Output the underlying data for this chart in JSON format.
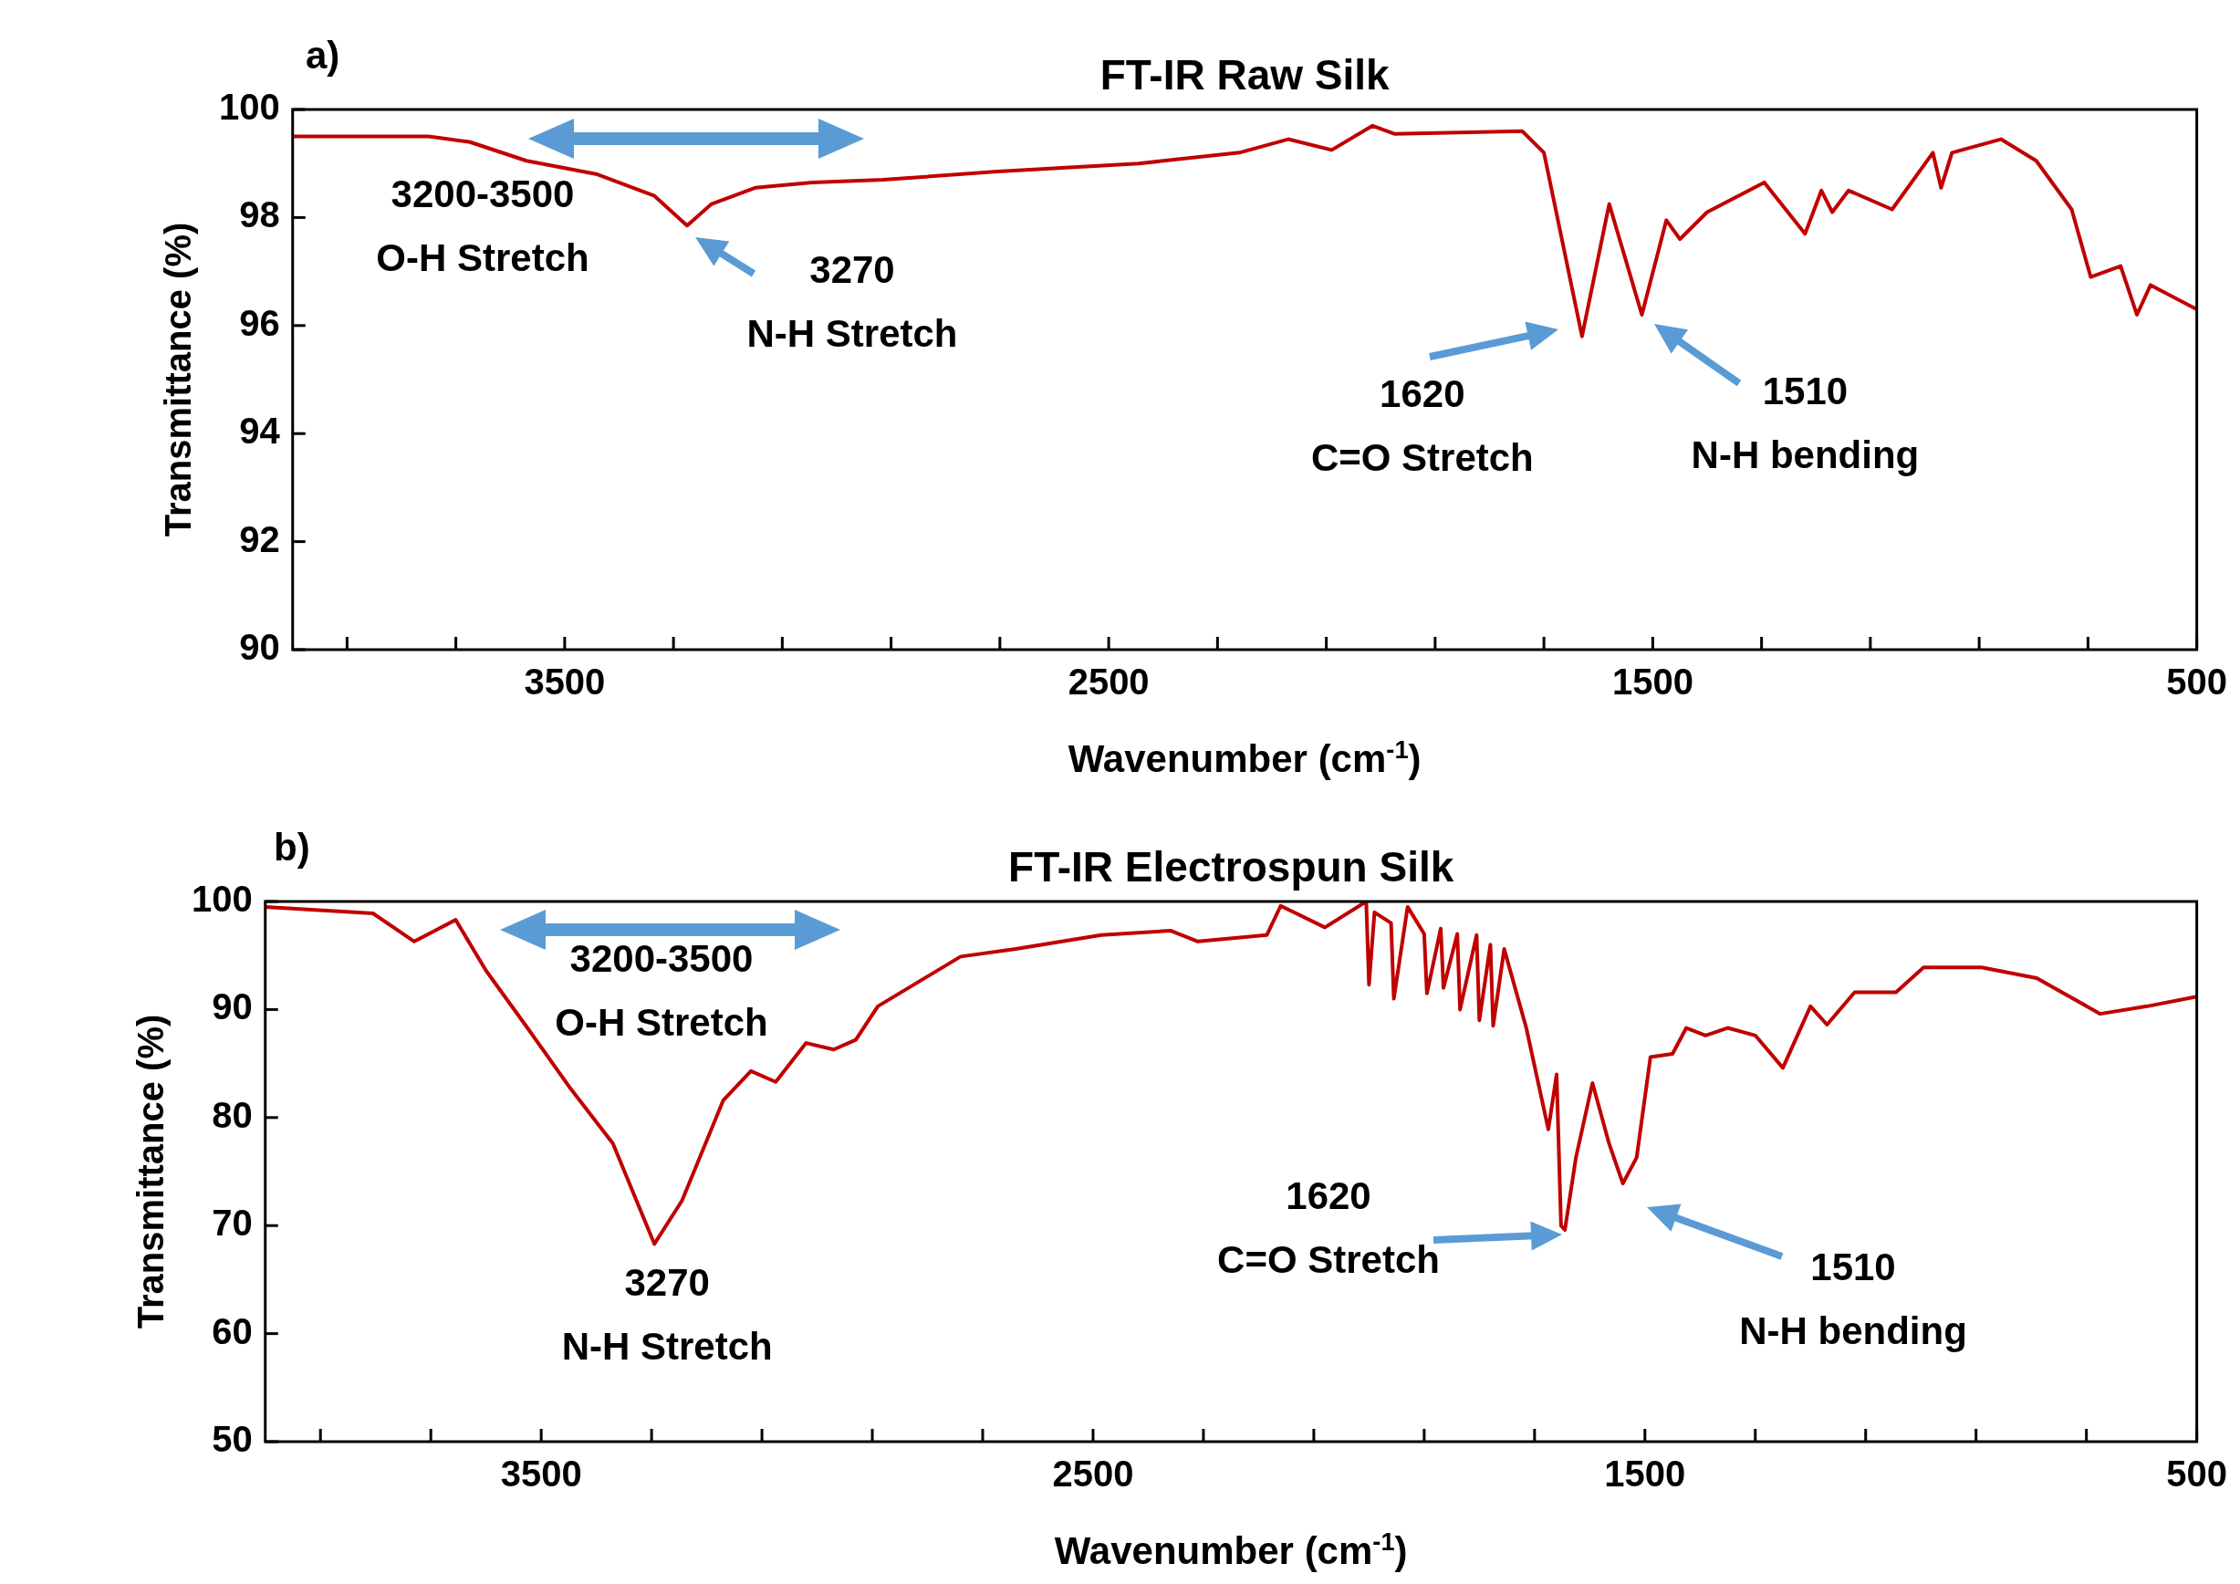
{
  "chart_data": [
    {
      "type": "line",
      "title": "FT-IR Raw Silk",
      "xlabel": "Wavenumber (cm$^{-1}$)",
      "ylabel": "Transmittance (%)",
      "marker": "none",
      "xlim": [
        4000,
        500
      ],
      "ylim": [
        90,
        100
      ],
      "xticks": [
        {
          "value": 3900,
          "label": null
        },
        {
          "value": 3700,
          "label": null
        },
        3500,
        {
          "value": 3300,
          "label": null
        },
        {
          "value": 3100,
          "label": null
        },
        {
          "value": 2900,
          "label": null
        },
        {
          "value": 2700,
          "label": null
        },
        2500,
        {
          "value": 2300,
          "label": null
        },
        {
          "value": 2100,
          "label": null
        },
        {
          "value": 1900,
          "label": null
        },
        {
          "value": 1700,
          "label": null
        },
        1500,
        {
          "value": 1300,
          "label": null
        },
        {
          "value": 1100,
          "label": null
        },
        {
          "value": 900,
          "label": null
        },
        {
          "value": 700,
          "label": null
        },
        500
      ],
      "yticks": [
        90,
        92,
        94,
        96,
        98,
        100
      ],
      "x": [
        4000,
        3750,
        3675,
        3570,
        3440,
        3335,
        3275,
        3230,
        3150,
        3045,
        2915,
        2705,
        2445,
        2260,
        2170,
        2090,
        2015,
        1975,
        1740,
        1700,
        1630,
        1580,
        1520,
        1475,
        1450,
        1400,
        1295,
        1220,
        1190,
        1170,
        1140,
        1060,
        985,
        970,
        950,
        860,
        795,
        730,
        695,
        640,
        610,
        585,
        500
      ],
      "series": [
        {
          "color": "#c00000",
          "values": [
            99.5,
            99.5,
            99.4,
            99.05,
            98.8,
            98.4,
            97.85,
            98.25,
            98.55,
            98.65,
            98.7,
            98.85,
            99.0,
            99.2,
            99.45,
            99.25,
            99.7,
            99.55,
            99.6,
            99.2,
            95.8,
            98.25,
            96.2,
            97.95,
            97.6,
            98.1,
            98.65,
            97.7,
            98.5,
            98.1,
            98.5,
            98.15,
            99.2,
            98.55,
            99.2,
            99.45,
            99.05,
            98.15,
            96.9,
            97.1,
            96.2,
            96.75,
            96.3
          ]
        }
      ],
      "annotations": [
        "a)",
        "3200-3500\nO-H Stretch",
        {
          "text": "3270\nN-H Stretch",
          "x": 3270,
          "y": 97.85
        },
        {
          "text": "1620\nC=O Stretch",
          "x": 1620,
          "y": 95.8
        },
        {
          "text": "1510\nN-H bending",
          "x": 1510,
          "y": 96.2
        }
      ]
    },
    {
      "type": "line",
      "title": "FT-IR Electrospun Silk",
      "xlabel": "Wavenumber (cm$^{-1}$)",
      "ylabel": "Transmittance (%)",
      "marker": "none",
      "xlim": [
        4000,
        500
      ],
      "ylim": [
        50,
        100
      ],
      "xticks": [
        {
          "value": 3900,
          "label": null
        },
        {
          "value": 3700,
          "label": null
        },
        3500,
        {
          "value": 3300,
          "label": null
        },
        {
          "value": 3100,
          "label": null
        },
        {
          "value": 2900,
          "label": null
        },
        {
          "value": 2700,
          "label": null
        },
        2500,
        {
          "value": 2300,
          "label": null
        },
        {
          "value": 2100,
          "label": null
        },
        {
          "value": 1900,
          "label": null
        },
        {
          "value": 1700,
          "label": null
        },
        1500,
        {
          "value": 1300,
          "label": null
        },
        {
          "value": 1100,
          "label": null
        },
        {
          "value": 900,
          "label": null
        },
        {
          "value": 700,
          "label": null
        },
        500
      ],
      "yticks": [
        50,
        60,
        70,
        80,
        90,
        100
      ],
      "x": [
        4000,
        3805,
        3730,
        3655,
        3600,
        3525,
        3450,
        3370,
        3295,
        3245,
        3170,
        3120,
        3075,
        3020,
        2970,
        2930,
        2890,
        2740,
        2640,
        2485,
        2360,
        2310,
        2185,
        2160,
        2080,
        2005,
        2000,
        1990,
        1960,
        1955,
        1930,
        1900,
        1895,
        1870,
        1865,
        1840,
        1835,
        1805,
        1800,
        1780,
        1775,
        1755,
        1715,
        1675,
        1660,
        1652,
        1645,
        1625,
        1595,
        1565,
        1540,
        1515,
        1490,
        1450,
        1425,
        1390,
        1350,
        1300,
        1250,
        1200,
        1170,
        1120,
        1045,
        995,
        890,
        790,
        675,
        590,
        500
      ],
      "series": [
        {
          "color": "#c00000",
          "values": [
            99.5,
            98.9,
            96.3,
            98.3,
            93.6,
            88.3,
            82.9,
            77.6,
            68.3,
            72.3,
            81.6,
            84.3,
            83.3,
            86.9,
            86.3,
            87.2,
            90.3,
            94.9,
            95.6,
            96.9,
            97.3,
            96.3,
            96.9,
            99.6,
            97.6,
            100,
            92.3,
            99,
            98,
            91,
            99.5,
            97,
            91.5,
            97.5,
            92,
            97,
            90,
            96.9,
            89,
            96,
            88.5,
            95.6,
            88.3,
            78.9,
            84,
            70,
            69.6,
            76.3,
            83.2,
            77.6,
            73.9,
            76.3,
            85.6,
            85.9,
            88.3,
            87.6,
            88.3,
            87.6,
            84.6,
            90.3,
            88.6,
            91.6,
            91.6,
            93.9,
            93.9,
            92.9,
            89.6,
            90.3,
            91.2
          ]
        }
      ],
      "annotations": [
        "b)",
        "3200-3500\nO-H Stretch",
        {
          "text": "3270\nN-H Stretch",
          "x": 3295,
          "y": 68.3
        },
        "1620\nC=O Stretch",
        "1510\nN-H bending"
      ]
    }
  ]
}
